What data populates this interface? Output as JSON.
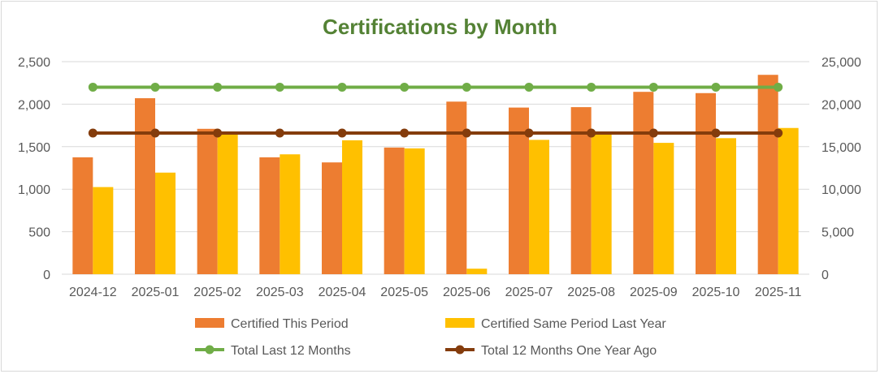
{
  "chart_data": {
    "type": "bar",
    "title": "Certifications by Month",
    "categories": [
      "2024-12",
      "2025-01",
      "2025-02",
      "2025-03",
      "2025-04",
      "2025-05",
      "2025-06",
      "2025-07",
      "2025-08",
      "2025-09",
      "2025-10",
      "2025-11"
    ],
    "y_left": {
      "ylim": [
        0,
        2500
      ],
      "ticks": [
        "0",
        "500",
        "1,000",
        "1,500",
        "2,000",
        "2,500"
      ]
    },
    "y_right": {
      "ylim": [
        0,
        25000
      ],
      "ticks": [
        "0",
        "5,000",
        "10,000",
        "15,000",
        "20,000",
        "25,000"
      ]
    },
    "series": [
      {
        "name": "Certified This Period",
        "type": "bar",
        "axis": "left",
        "color": "#ed7d31",
        "values": [
          1375,
          2070,
          1710,
          1375,
          1315,
          1490,
          2030,
          1960,
          1965,
          2145,
          2130,
          2345
        ]
      },
      {
        "name": "Certified Same Period Last Year",
        "type": "bar",
        "axis": "left",
        "color": "#ffc000",
        "values": [
          1025,
          1195,
          1660,
          1410,
          1575,
          1480,
          65,
          1580,
          1650,
          1545,
          1600,
          1720
        ]
      },
      {
        "name": "Total Last 12 Months",
        "type": "line",
        "axis": "right",
        "color": "#70ad47",
        "values": [
          22000,
          22000,
          22000,
          22000,
          22000,
          22000,
          22000,
          22000,
          22000,
          22000,
          22000,
          22000
        ]
      },
      {
        "name": "Total 12 Months One Year Ago",
        "type": "line",
        "axis": "right",
        "color": "#843c0c",
        "values": [
          16600,
          16600,
          16600,
          16600,
          16600,
          16600,
          16600,
          16600,
          16600,
          16600,
          16600,
          16600
        ]
      }
    ],
    "grid": true,
    "legend_position": "bottom"
  }
}
